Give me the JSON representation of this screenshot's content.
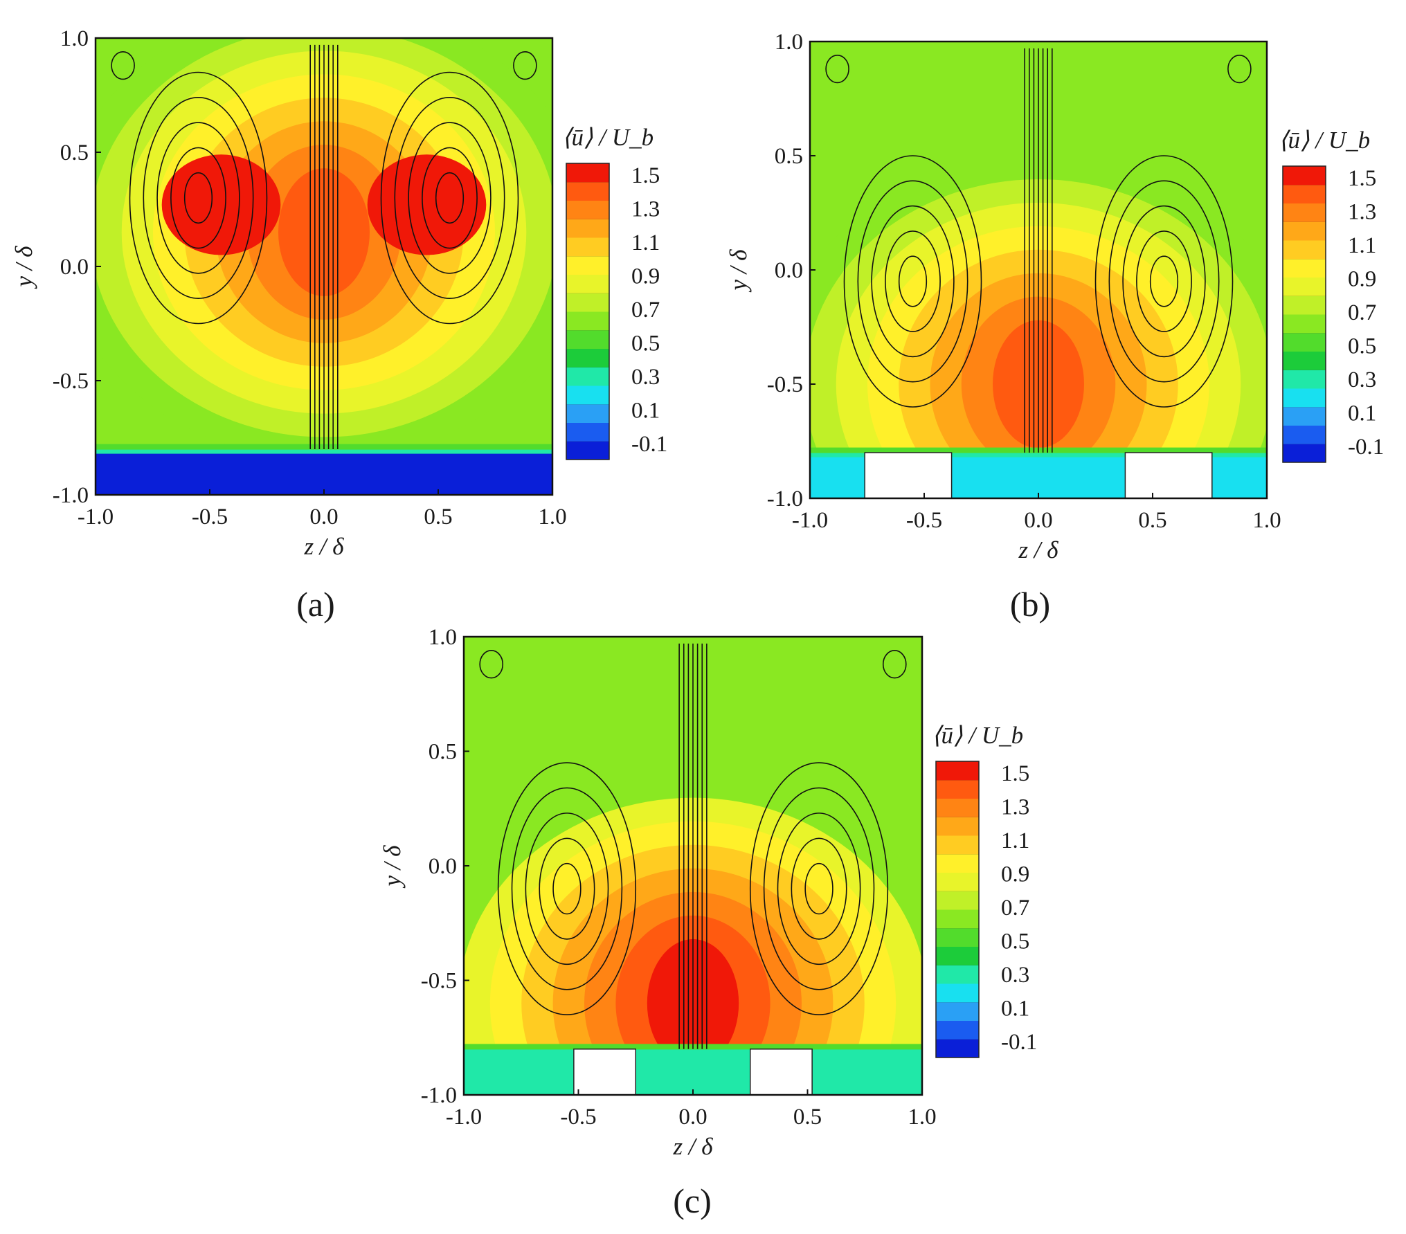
{
  "chart_data": [
    {
      "type": "heatmap",
      "panel_label": "(a)",
      "xlabel": "z / δ",
      "ylabel": "y / δ",
      "xlim": [
        -1.0,
        1.0
      ],
      "ylim": [
        -1.0,
        1.0
      ],
      "x_ticks": [
        "-1.0",
        "-0.5",
        "0.0",
        "0.5",
        "1.0"
      ],
      "y_ticks": [
        "-1.0",
        "-0.5",
        "0.0",
        "0.5",
        "1.0"
      ],
      "colorbar": {
        "title": "⟨ū⟩ / U_b",
        "ticks": [
          "1.5",
          "1.3",
          "1.1",
          "0.9",
          "0.7",
          "0.5",
          "0.3",
          "0.1",
          "-0.1"
        ],
        "levels": [
          -0.2,
          1.6
        ],
        "colors": [
          "#0a1fd8",
          "#1a5cf0",
          "#2aa0f5",
          "#18e0f0",
          "#20e8a8",
          "#1ccc3a",
          "#52dc2c",
          "#8ae822",
          "#c0f028",
          "#e8f42a",
          "#fff02a",
          "#ffcc22",
          "#ffa818",
          "#ff8414",
          "#ff5a10",
          "#f01808"
        ]
      },
      "field": {
        "core_center": [
          0.0,
          0.15
        ],
        "core_value": 1.45,
        "wall_value": 0.6,
        "low_band": {
          "y": [
            -1.0,
            -0.82
          ],
          "value": -0.1
        }
      },
      "blocks": []
    },
    {
      "type": "heatmap",
      "panel_label": "(b)",
      "xlabel": "z / δ",
      "ylabel": "y / δ",
      "xlim": [
        -1.0,
        1.0
      ],
      "ylim": [
        -1.0,
        1.0
      ],
      "x_ticks": [
        "-1.0",
        "-0.5",
        "0.0",
        "0.5",
        "1.0"
      ],
      "y_ticks": [
        "-1.0",
        "-0.5",
        "0.0",
        "0.5",
        "1.0"
      ],
      "colorbar": {
        "title": "⟨ū⟩ / U_b",
        "ticks": [
          "1.5",
          "1.3",
          "1.1",
          "0.9",
          "0.7",
          "0.5",
          "0.3",
          "0.1",
          "-0.1"
        ],
        "levels": [
          -0.2,
          1.6
        ],
        "colors": [
          "#0a1fd8",
          "#1a5cf0",
          "#2aa0f5",
          "#18e0f0",
          "#20e8a8",
          "#1ccc3a",
          "#52dc2c",
          "#8ae822",
          "#c0f028",
          "#e8f42a",
          "#fff02a",
          "#ffcc22",
          "#ffa818",
          "#ff8414",
          "#ff5a10",
          "#f01808"
        ]
      },
      "field": {
        "core_center": [
          0.0,
          -0.5
        ],
        "core_value": 1.45,
        "wall_value": 0.7,
        "low_band": {
          "y": [
            -1.0,
            -0.82
          ],
          "value": 0.2
        }
      },
      "blocks": [
        [
          -0.76,
          -0.38
        ],
        [
          0.38,
          0.76
        ]
      ]
    },
    {
      "type": "heatmap",
      "panel_label": "(c)",
      "xlabel": "z / δ",
      "ylabel": "y / δ",
      "xlim": [
        -1.0,
        1.0
      ],
      "ylim": [
        -1.0,
        1.0
      ],
      "x_ticks": [
        "-1.0",
        "-0.5",
        "0.0",
        "0.5",
        "1.0"
      ],
      "y_ticks": [
        "-1.0",
        "-0.5",
        "0.0",
        "0.5",
        "1.0"
      ],
      "colorbar": {
        "title": "⟨ū⟩ / U_b",
        "ticks": [
          "1.5",
          "1.3",
          "1.1",
          "0.9",
          "0.7",
          "0.5",
          "0.3",
          "0.1",
          "-0.1"
        ],
        "levels": [
          -0.2,
          1.6
        ],
        "colors": [
          "#0a1fd8",
          "#1a5cf0",
          "#2aa0f5",
          "#18e0f0",
          "#20e8a8",
          "#1ccc3a",
          "#52dc2c",
          "#8ae822",
          "#c0f028",
          "#e8f42a",
          "#fff02a",
          "#ffcc22",
          "#ffa818",
          "#ff8414",
          "#ff5a10",
          "#f01808"
        ]
      },
      "field": {
        "core_center": [
          0.0,
          -0.6
        ],
        "core_value": 1.5,
        "wall_value": 0.7,
        "low_band": {
          "y": [
            -1.0,
            -0.82
          ],
          "value": 0.3
        }
      },
      "blocks": [
        [
          -0.52,
          -0.25
        ],
        [
          0.25,
          0.52
        ]
      ]
    }
  ]
}
